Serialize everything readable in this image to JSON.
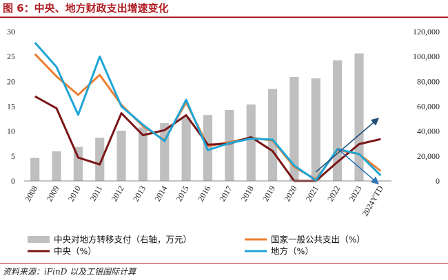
{
  "title": "图 6：中央、地方财政支出增速变化",
  "source": "资料来源：iFinD 以及工银国际计算",
  "chart_data": {
    "type": "bar+line",
    "categories": [
      "2008",
      "2009",
      "2010",
      "2011",
      "2012",
      "2013",
      "2014",
      "2015",
      "2016",
      "2017",
      "2018",
      "2019",
      "2020",
      "2021",
      "2022",
      "2023",
      "2024YTD"
    ],
    "y_left": {
      "min": 0,
      "max": 30,
      "ticks": [
        "0",
        "5",
        "10",
        "15",
        "20",
        "25",
        "30"
      ]
    },
    "y_right": {
      "min": 0,
      "max": 120000,
      "ticks": [
        "0",
        "20,000",
        "40,000",
        "60,000",
        "80,000",
        "100,000",
        "120,000"
      ]
    },
    "bar_series": {
      "name": "中央对地方转移支付（右轴，万元）",
      "axis": "right",
      "color": "#bfbfbf",
      "values": [
        18500,
        23800,
        27400,
        34800,
        40400,
        43000,
        46500,
        51000,
        53000,
        57000,
        61500,
        74000,
        83500,
        82500,
        97000,
        102500,
        null
      ]
    },
    "line_series": [
      {
        "name": "国家一般公共支出（%）",
        "axis": "left",
        "color": "#ed7d31",
        "values": [
          25.5,
          21.0,
          17.3,
          21.3,
          15.3,
          11.0,
          8.2,
          15.8,
          7.0,
          7.8,
          8.7,
          8.1,
          2.8,
          0.3,
          6.2,
          5.4,
          2.0
        ]
      },
      {
        "name": "中央（%）",
        "axis": "left",
        "color": "#7b1416",
        "values": [
          17.0,
          14.6,
          4.7,
          3.3,
          13.6,
          9.2,
          10.2,
          13.2,
          7.3,
          7.5,
          8.8,
          6.0,
          0.0,
          0.0,
          3.8,
          7.4,
          8.4
        ]
      },
      {
        "name": "地方（%）",
        "axis": "left",
        "color": "#1ea5d6",
        "values": [
          27.8,
          22.9,
          13.3,
          25.0,
          15.0,
          11.3,
          8.0,
          16.3,
          6.2,
          7.6,
          8.5,
          8.3,
          3.1,
          0.1,
          6.4,
          5.4,
          1.1
        ]
      }
    ],
    "annotations": [
      {
        "type": "arrow",
        "color": "#1f4e79",
        "from": {
          "x": "2021",
          "y": 1.8
        },
        "to": {
          "x": "2024YTD",
          "y": 12.5
        }
      },
      {
        "type": "arrow",
        "color": "#2e75b6",
        "from": {
          "x": "2022",
          "y": 6.5
        },
        "to": {
          "x": "2024YTD",
          "y": -0.5
        }
      }
    ],
    "legend": {
      "position": "bottom",
      "columns": 2
    },
    "grid": false
  }
}
